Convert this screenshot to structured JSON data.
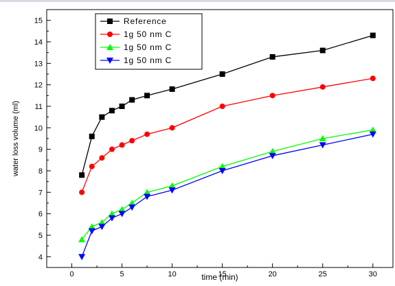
{
  "chart_data": {
    "type": "line",
    "title": "",
    "xlabel": "time (min)",
    "ylabel": "water loss volume (ml)",
    "xlim": [
      -2.5,
      32
    ],
    "ylim": [
      3.5,
      15.5
    ],
    "x_ticks": [
      0,
      5,
      10,
      15,
      20,
      25,
      30
    ],
    "y_ticks": [
      4,
      5,
      6,
      7,
      8,
      9,
      10,
      11,
      12,
      13,
      14,
      15
    ],
    "grid": false,
    "legend_position": "top-left",
    "series": [
      {
        "name": "Reference",
        "color": "#000000",
        "marker": "square",
        "x": [
          1,
          2,
          3,
          4,
          5,
          6,
          7.5,
          10,
          15,
          20,
          25,
          30
        ],
        "y": [
          7.8,
          9.6,
          10.5,
          10.8,
          11.0,
          11.3,
          11.5,
          11.8,
          12.5,
          13.3,
          13.6,
          14.3
        ]
      },
      {
        "name": "1g 50 nm C",
        "color": "#ff0000",
        "marker": "circle",
        "x": [
          1,
          2,
          3,
          4,
          5,
          6,
          7.5,
          10,
          15,
          20,
          25,
          30
        ],
        "y": [
          7.0,
          8.2,
          8.6,
          9.0,
          9.2,
          9.4,
          9.7,
          10.0,
          11.0,
          11.5,
          11.9,
          12.3
        ]
      },
      {
        "name": "1g 50 nm C",
        "color": "#00ff00",
        "marker": "triangle-up",
        "x": [
          1,
          2,
          3,
          4,
          5,
          6,
          7.5,
          10,
          15,
          20,
          25,
          30
        ],
        "y": [
          4.8,
          5.4,
          5.6,
          6.0,
          6.2,
          6.5,
          7.0,
          7.3,
          8.2,
          8.9,
          9.5,
          9.9
        ]
      },
      {
        "name": "1g 50 nm C",
        "color": "#0000ff",
        "marker": "triangle-down",
        "x": [
          1,
          2,
          3,
          4,
          5,
          6,
          7.5,
          10,
          15,
          20,
          25,
          30
        ],
        "y": [
          4.0,
          5.2,
          5.4,
          5.8,
          6.0,
          6.3,
          6.8,
          7.1,
          8.0,
          8.7,
          9.2,
          9.7
        ]
      }
    ]
  }
}
